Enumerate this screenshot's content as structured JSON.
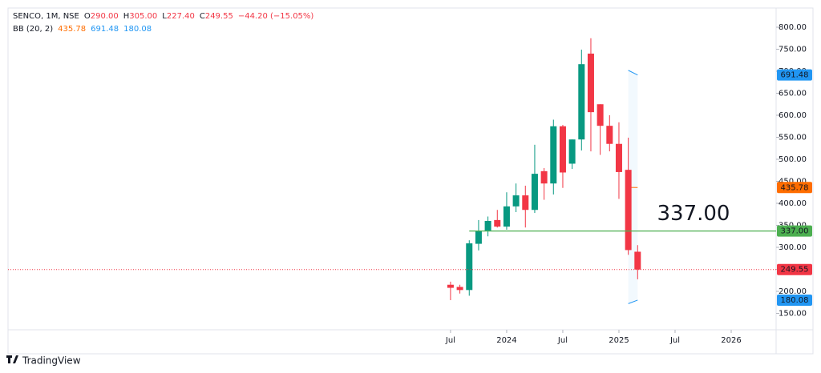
{
  "chart_data": {
    "type": "candlestick",
    "title": "SENCO, 1M, NSE",
    "ohlc_legend": [
      {
        "key": "O",
        "value": 290,
        "label": "290.00"
      },
      {
        "key": "H",
        "value": 305,
        "label": "305.00"
      },
      {
        "key": "L",
        "value": 227.4,
        "label": "227.40"
      },
      {
        "key": "C",
        "value": 249.55,
        "label": "249.55"
      }
    ],
    "change": {
      "value": -44.2,
      "label": "−44.20 (−15.05%)"
    },
    "up_color": "#089981",
    "down_color": "#f23645",
    "open": [
      215,
      210,
      203,
      308,
      337,
      362,
      347,
      393,
      418,
      385,
      473,
      445,
      575,
      490,
      545,
      740,
      625,
      576,
      535,
      476,
      290
    ],
    "high": [
      222,
      215,
      316,
      362,
      370,
      385,
      425,
      445,
      440,
      533,
      480,
      590,
      578,
      545,
      749,
      775,
      625,
      600,
      584,
      549,
      305
    ],
    "low": [
      180,
      195,
      190,
      293,
      325,
      345,
      340,
      380,
      345,
      378,
      408,
      420,
      435,
      478,
      520,
      518,
      510,
      518,
      410,
      283,
      227.4
    ],
    "close": [
      208,
      203,
      309,
      337,
      360,
      347,
      393,
      418,
      385,
      467,
      445,
      575,
      470,
      545,
      716,
      607,
      576,
      535,
      471,
      293.75,
      249.55
    ],
    "xlim": [
      -47.3,
      34.8
    ],
    "xticks": [
      {
        "value": 0,
        "label": "Jul"
      },
      {
        "value": 6,
        "label": "2024"
      },
      {
        "value": 12,
        "label": "Jul"
      },
      {
        "value": 18,
        "label": "2025"
      },
      {
        "value": 24,
        "label": "Jul"
      },
      {
        "value": 30,
        "label": "2026"
      }
    ],
    "ylim": [
      112.7,
      843.6
    ],
    "yticks": [
      {
        "value": 150,
        "label": "150.00"
      },
      {
        "value": 200,
        "label": "200.00"
      },
      {
        "value": 250,
        "label": "250.00"
      },
      {
        "value": 300,
        "label": "300.00"
      },
      {
        "value": 350,
        "label": "350.00"
      },
      {
        "value": 400,
        "label": "400.00"
      },
      {
        "value": 450,
        "label": "450.00"
      },
      {
        "value": 500,
        "label": "500.00"
      },
      {
        "value": 550,
        "label": "550.00"
      },
      {
        "value": 600,
        "label": "600.00"
      },
      {
        "value": 650,
        "label": "650.00"
      },
      {
        "value": 700,
        "label": "700.00"
      },
      {
        "value": 750,
        "label": "750.00"
      },
      {
        "value": 800,
        "label": "800.00"
      }
    ],
    "bollinger": {
      "name": "BB (20, 2)",
      "x": [
        19,
        20
      ],
      "basis": {
        "color": "#ff6d00",
        "values": [
          436,
          435.78
        ],
        "last_label": "435.78"
      },
      "upper": {
        "color": "#2196f3",
        "values": [
          702,
          691.48
        ],
        "last_label": "691.48"
      },
      "lower": {
        "color": "#2196f3",
        "values": [
          172,
          180.08
        ],
        "last_label": "180.08"
      }
    },
    "hline": {
      "value": 337,
      "label": "337.00",
      "color": "#4caf50",
      "start": 2
    },
    "last_price": {
      "value": 249.55,
      "label": "249.55",
      "color": "#f23645"
    },
    "branding": "TradingView"
  }
}
